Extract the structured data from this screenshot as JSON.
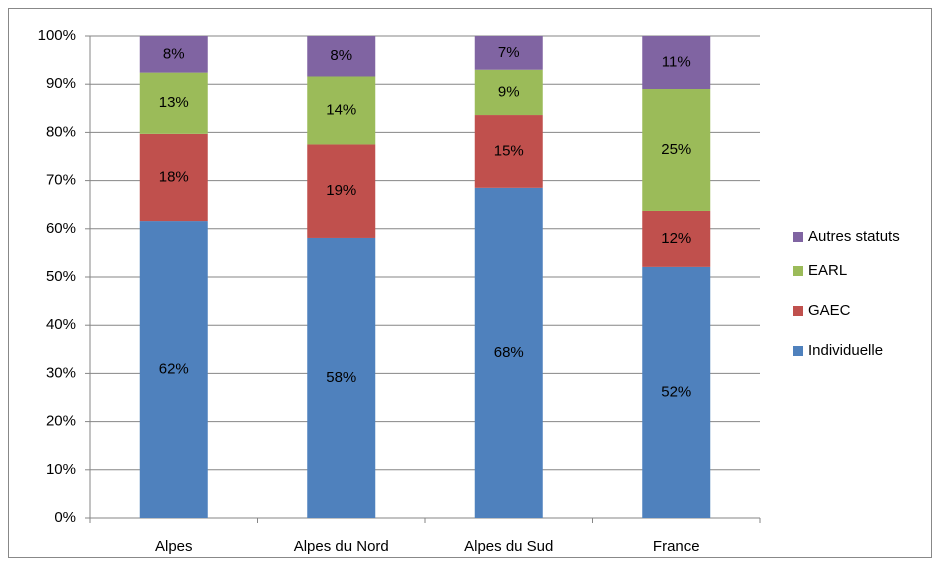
{
  "chart_data": {
    "type": "stacked_bar",
    "categories": [
      "Alpes",
      "Alpes du Nord",
      "Alpes du Sud",
      "France"
    ],
    "series": [
      {
        "name": "Individuelle",
        "color": "#4f81bd",
        "values": [
          61.6,
          58.1,
          68.5,
          52.1
        ],
        "value_labels": [
          "62%",
          "58%",
          "68%",
          "52%"
        ]
      },
      {
        "name": "GAEC",
        "color": "#c0504d",
        "values": [
          18.1,
          19.4,
          15.1,
          11.6
        ],
        "value_labels": [
          "18%",
          "19%",
          "15%",
          "12%"
        ]
      },
      {
        "name": "EARL",
        "color": "#9bbb59",
        "values": [
          12.7,
          14.1,
          9.4,
          25.3
        ],
        "value_labels": [
          "13%",
          "14%",
          "9%",
          "25%"
        ]
      },
      {
        "name": "Autres statuts",
        "color": "#8064a2",
        "values": [
          7.6,
          8.4,
          7.0,
          11.0
        ],
        "value_labels": [
          "8%",
          "8%",
          "7%",
          "11%"
        ]
      }
    ],
    "ylim": [
      0,
      100
    ],
    "yticks": [
      {
        "value": 0,
        "label": "0%"
      },
      {
        "value": 10,
        "label": "10%"
      },
      {
        "value": 20,
        "label": "20%"
      },
      {
        "value": 30,
        "label": "30%"
      },
      {
        "value": 40,
        "label": "40%"
      },
      {
        "value": 50,
        "label": "50%"
      },
      {
        "value": 60,
        "label": "60%"
      },
      {
        "value": 70,
        "label": "70%"
      },
      {
        "value": 80,
        "label": "80%"
      },
      {
        "value": 90,
        "label": "90%"
      },
      {
        "value": 100,
        "label": "100%"
      }
    ],
    "grid": true,
    "legend": "right"
  }
}
